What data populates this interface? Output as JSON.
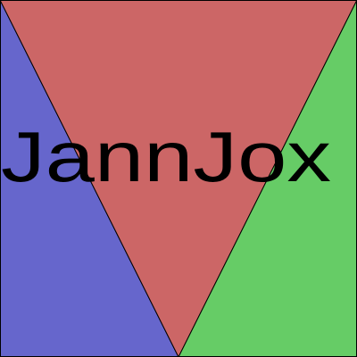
{
  "logo": {
    "text": "JannJox",
    "colors": {
      "left_triangle": "#6666cc",
      "center_triangle": "#cc6666",
      "right_triangle": "#66cc66",
      "outline": "#000000",
      "text": "#000000"
    }
  }
}
